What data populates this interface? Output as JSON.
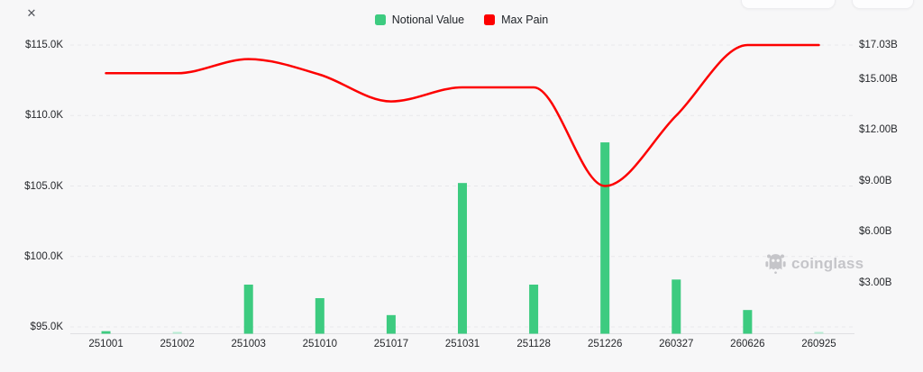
{
  "page": {
    "background": "#f7f7f8"
  },
  "header": {
    "close_icon": "✕"
  },
  "legend": {
    "items": [
      {
        "label": "Notional Value",
        "color": "#3dcb80"
      },
      {
        "label": "Max Pain",
        "color": "#fd0000"
      }
    ]
  },
  "watermark": {
    "text": "coinglass",
    "icon": "coinglass-mascot-icon",
    "color": "#c5c5c9"
  },
  "chart_data": {
    "type": "bar+line",
    "title": "",
    "categories": [
      "251001",
      "251002",
      "251003",
      "251010",
      "251017",
      "251031",
      "251128",
      "251226",
      "260327",
      "260626",
      "260925"
    ],
    "series": [
      {
        "name": "Notional Value",
        "type": "bar",
        "axis": "right",
        "unit": "USD billions",
        "color": "#3dcb80",
        "color_faint": "#b9ecd3",
        "values": [
          0.15,
          0.06,
          2.9,
          2.1,
          1.1,
          8.9,
          2.9,
          11.3,
          3.2,
          1.4,
          0.06
        ]
      },
      {
        "name": "Max Pain",
        "type": "line",
        "axis": "left",
        "unit": "USD",
        "color": "#fd0000",
        "values": [
          113000,
          113000,
          114000,
          112900,
          111000,
          112000,
          112000,
          105000,
          110000,
          115000,
          115000
        ]
      }
    ],
    "left_axis": {
      "ticks": [
        "$115.0K",
        "$110.0K",
        "$105.0K",
        "$100.0K",
        "$95.0K"
      ],
      "tick_values": [
        115000,
        110000,
        105000,
        100000,
        95000
      ]
    },
    "right_axis": {
      "ticks": [
        "$17.03B",
        "$15.00B",
        "$12.00B",
        "$9.00B",
        "$6.00B",
        "$3.00B"
      ],
      "tick_values": [
        17.03,
        15,
        12,
        9,
        6,
        3
      ]
    },
    "grid": "dashed-horizontal",
    "legend_position": "top-center",
    "grid_color": "#e8e8eb",
    "axis_line_color": "#dfdfe3"
  }
}
